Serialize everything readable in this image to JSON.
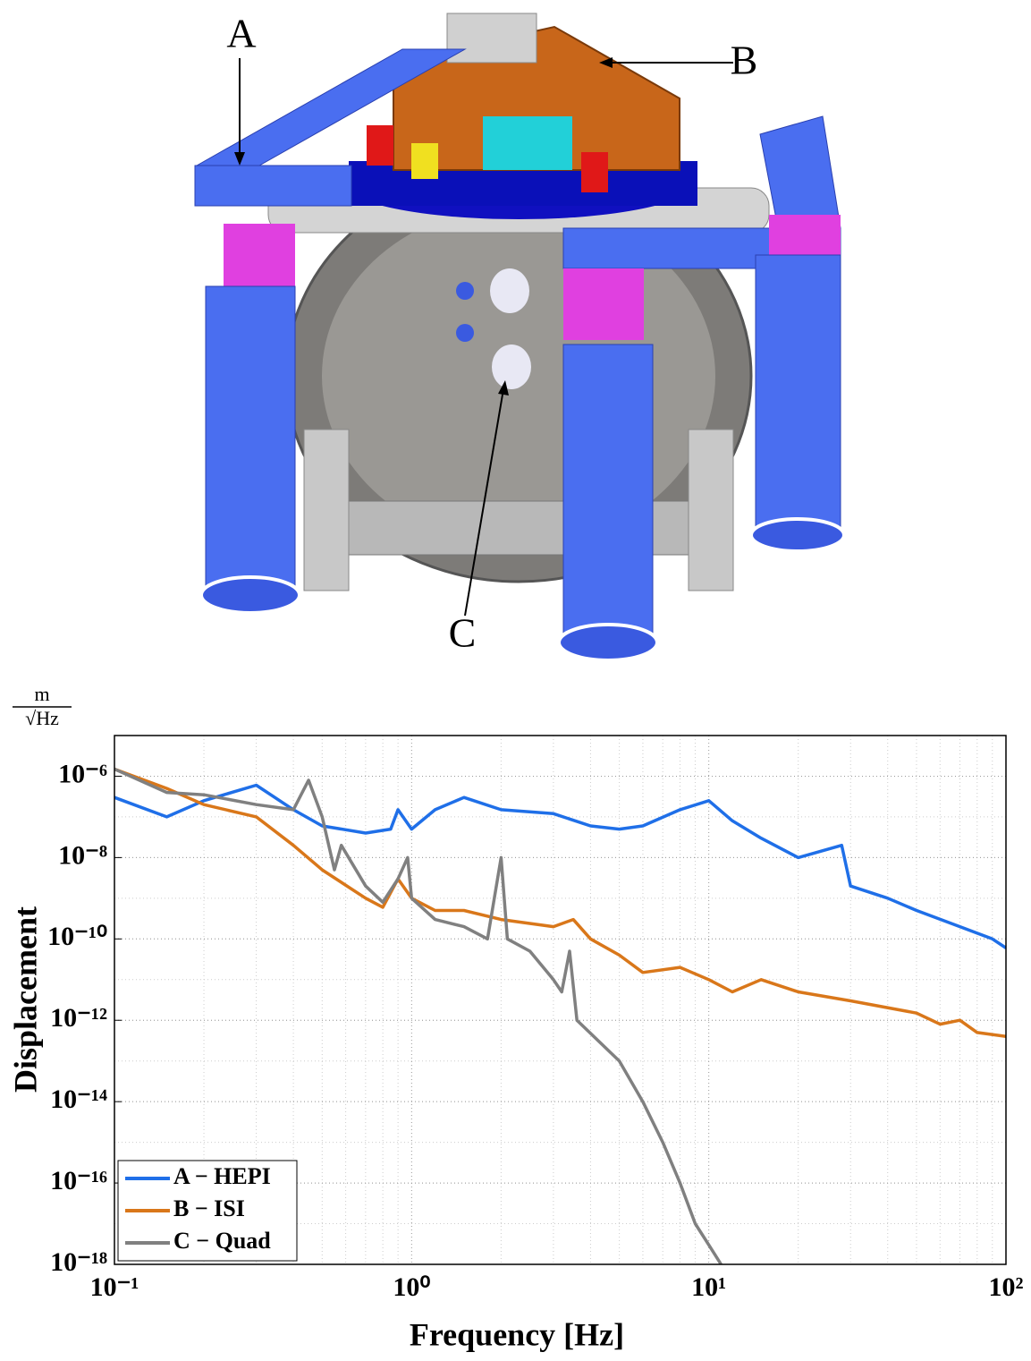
{
  "figure_labels": {
    "a": "A",
    "b": "B",
    "c": "C"
  },
  "chart_data": {
    "type": "line",
    "x_label": "Frequency [Hz]",
    "y_label": "Displacement",
    "y_unit_numerator": "m",
    "y_unit_denominator": "√Hz",
    "xlog": true,
    "ylog": true,
    "grid": true,
    "legend": "lower-left",
    "xlim": [
      0.1,
      100
    ],
    "ylim": [
      1e-18,
      1e-05
    ],
    "xticks": [
      {
        "value": 0.1,
        "label": "10⁻¹"
      },
      {
        "value": 1,
        "label": "10⁰"
      },
      {
        "value": 10,
        "label": "10¹"
      },
      {
        "value": 100,
        "label": "10²"
      }
    ],
    "yticks": [
      {
        "value": 1e-18,
        "label": "10⁻¹⁸"
      },
      {
        "value": 1e-16,
        "label": "10⁻¹⁶"
      },
      {
        "value": 1e-14,
        "label": "10⁻¹⁴"
      },
      {
        "value": 1e-12,
        "label": "10⁻¹²"
      },
      {
        "value": 1e-10,
        "label": "10⁻¹⁰"
      },
      {
        "value": 1e-08,
        "label": "10⁻⁸"
      },
      {
        "value": 1e-06,
        "label": "10⁻⁶"
      }
    ],
    "series": [
      {
        "name": "A − HEPI",
        "color": "#1f6fe8",
        "x": [
          0.1,
          0.15,
          0.2,
          0.3,
          0.4,
          0.5,
          0.7,
          0.85,
          0.9,
          1.0,
          1.2,
          1.5,
          2,
          3,
          4,
          5,
          6,
          8,
          10,
          12,
          15,
          20,
          28,
          30,
          40,
          50,
          70,
          90,
          100
        ],
        "values": [
          3e-07,
          1e-07,
          2.5e-07,
          6e-07,
          1.5e-07,
          6e-08,
          4e-08,
          5e-08,
          1.5e-07,
          5e-08,
          1.5e-07,
          3e-07,
          1.5e-07,
          1.2e-07,
          6e-08,
          5e-08,
          6e-08,
          1.5e-07,
          2.5e-07,
          8e-08,
          3e-08,
          1e-08,
          2e-08,
          2e-09,
          1e-09,
          5e-10,
          2e-10,
          1e-10,
          6e-11
        ]
      },
      {
        "name": "B − ISI",
        "color": "#d9771a",
        "x": [
          0.1,
          0.15,
          0.2,
          0.3,
          0.4,
          0.5,
          0.7,
          0.8,
          0.9,
          1.0,
          1.2,
          1.5,
          2,
          3,
          3.5,
          4,
          5,
          6,
          8,
          10,
          12,
          15,
          20,
          30,
          50,
          60,
          70,
          80,
          100
        ],
        "values": [
          1.5e-06,
          5e-07,
          2e-07,
          1e-07,
          2e-08,
          5e-09,
          1e-09,
          6e-10,
          3e-09,
          1e-09,
          5e-10,
          5e-10,
          3e-10,
          2e-10,
          3e-10,
          1e-10,
          4e-11,
          1.5e-11,
          2e-11,
          1e-11,
          5e-12,
          1e-11,
          5e-12,
          3e-12,
          1.5e-12,
          8e-13,
          1e-12,
          5e-13,
          4e-13
        ]
      },
      {
        "name": "C − Quad",
        "color": "#808080",
        "x": [
          0.1,
          0.15,
          0.2,
          0.3,
          0.4,
          0.45,
          0.5,
          0.55,
          0.58,
          0.7,
          0.8,
          0.9,
          0.97,
          1.0,
          1.2,
          1.5,
          1.8,
          2.0,
          2.1,
          2.5,
          3,
          3.2,
          3.4,
          3.6,
          5,
          6,
          7,
          8,
          9,
          10,
          11
        ],
        "values": [
          1.5e-06,
          4e-07,
          3.5e-07,
          2e-07,
          1.5e-07,
          8e-07,
          1e-07,
          5e-09,
          2e-08,
          2e-09,
          8e-10,
          3e-09,
          1e-08,
          1e-09,
          3e-10,
          2e-10,
          1e-10,
          1e-08,
          1e-10,
          5e-11,
          1e-11,
          5e-12,
          5e-11,
          1e-12,
          1e-13,
          1e-14,
          1e-15,
          1e-16,
          1e-17,
          3e-18,
          1e-18
        ]
      }
    ]
  }
}
